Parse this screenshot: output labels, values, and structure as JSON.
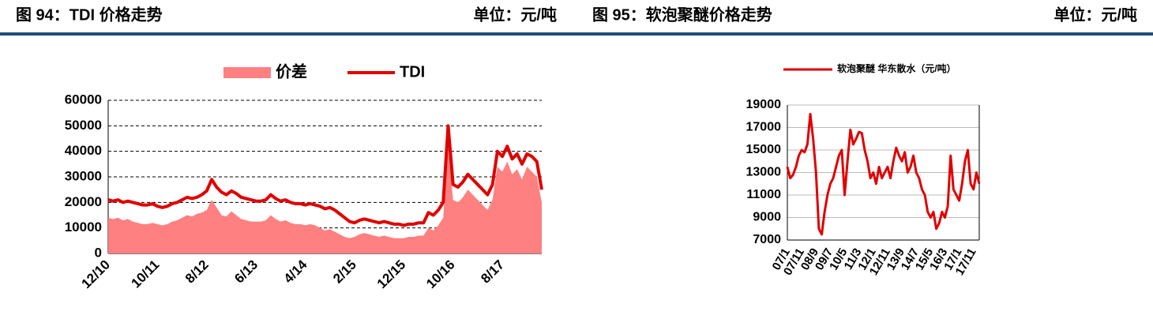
{
  "chart_data": [
    {
      "type": "line",
      "title": "图 94：TDI 价格走势",
      "unit": "单位：元/吨",
      "legend": "top",
      "categories": [
        "12/10",
        null,
        null,
        null,
        null,
        null,
        null,
        null,
        null,
        null,
        "10/11",
        null,
        null,
        null,
        null,
        null,
        null,
        null,
        null,
        null,
        "8/12",
        null,
        null,
        null,
        null,
        null,
        null,
        null,
        null,
        null,
        "6/13",
        null,
        null,
        null,
        null,
        null,
        null,
        null,
        null,
        null,
        "4/14",
        null,
        null,
        null,
        null,
        null,
        null,
        null,
        null,
        null,
        "2/15",
        null,
        null,
        null,
        null,
        null,
        null,
        null,
        null,
        null,
        "12/15",
        null,
        null,
        null,
        null,
        null,
        null,
        null,
        null,
        null,
        "10/16",
        null,
        null,
        null,
        null,
        null,
        null,
        null,
        null,
        null,
        "8/17",
        null,
        null,
        null,
        null,
        null,
        null,
        null,
        null
      ],
      "series": [
        {
          "name": "价差",
          "type": "area",
          "color": "#ff8080",
          "values": [
            14000,
            13500,
            14000,
            13000,
            13500,
            12500,
            12000,
            11500,
            11500,
            12000,
            11500,
            11000,
            11500,
            12500,
            13000,
            14000,
            15000,
            14500,
            15500,
            16000,
            17000,
            21000,
            18000,
            15000,
            14500,
            16500,
            15000,
            13500,
            13000,
            12500,
            12500,
            12500,
            13000,
            15000,
            13500,
            12500,
            13000,
            12000,
            11500,
            11500,
            11000,
            11500,
            11000,
            10000,
            9000,
            9500,
            8500,
            7500,
            6500,
            6000,
            6500,
            7500,
            8000,
            7500,
            7000,
            6500,
            7000,
            6500,
            6000,
            6000,
            6000,
            6500,
            6500,
            7000,
            7000,
            10000,
            9000,
            11000,
            14000,
            43000,
            21000,
            20000,
            22000,
            25000,
            23000,
            21000,
            19000,
            17000,
            21000,
            34000,
            32000,
            36000,
            31000,
            33000,
            29000,
            34000,
            32000,
            30000,
            20000
          ]
        },
        {
          "name": "TDI",
          "type": "line",
          "color": "#e00000",
          "values": [
            21000,
            20500,
            21000,
            20000,
            20500,
            20000,
            19500,
            19000,
            19000,
            19500,
            18500,
            18000,
            18500,
            19500,
            20000,
            21000,
            22000,
            21500,
            22000,
            23000,
            24500,
            29000,
            26000,
            24000,
            23000,
            24500,
            23500,
            22000,
            21500,
            21000,
            20500,
            20500,
            21000,
            23000,
            21500,
            20500,
            21000,
            20000,
            19500,
            19500,
            19000,
            19500,
            19000,
            18500,
            17500,
            18000,
            17000,
            15500,
            14000,
            12500,
            12000,
            13000,
            13500,
            13000,
            12500,
            12000,
            12500,
            12000,
            11500,
            11500,
            11000,
            11500,
            11500,
            12000,
            12000,
            16000,
            15000,
            17000,
            20000,
            50000,
            27000,
            26000,
            28000,
            31000,
            29000,
            27000,
            25000,
            23000,
            27000,
            40000,
            38000,
            42000,
            37000,
            39000,
            35000,
            39000,
            38000,
            36000,
            25000
          ]
        }
      ],
      "ylim": [
        0,
        60000
      ],
      "yticks": [
        0,
        10000,
        20000,
        30000,
        40000,
        50000,
        60000
      ],
      "grid": true
    },
    {
      "type": "line",
      "title": "图 95：软泡聚醚价格走势",
      "unit": "单位：元/吨",
      "legend": "top",
      "categories": [
        "07/1",
        null,
        null,
        null,
        null,
        "07/11",
        null,
        null,
        null,
        null,
        "08/9",
        null,
        null,
        null,
        null,
        "09/7",
        null,
        null,
        null,
        null,
        "10/5",
        null,
        null,
        null,
        null,
        "11/3",
        null,
        null,
        null,
        null,
        "12/1",
        null,
        null,
        null,
        null,
        "12/11",
        null,
        null,
        null,
        null,
        "13/9",
        null,
        null,
        null,
        null,
        "14/7",
        null,
        null,
        null,
        null,
        "15/5",
        null,
        null,
        null,
        null,
        "16/3",
        null,
        null,
        null,
        null,
        "17/1",
        null,
        null,
        null,
        null,
        "17/11",
        null,
        null
      ],
      "series": [
        {
          "name": "软泡聚醚 华东散水（元/吨）",
          "color": "#e00000",
          "values": [
            13500,
            12500,
            12800,
            13500,
            14500,
            15000,
            14800,
            15500,
            18200,
            16000,
            13000,
            8000,
            7500,
            9500,
            11000,
            12000,
            12500,
            13500,
            14500,
            15000,
            11000,
            14000,
            16800,
            15500,
            16000,
            16600,
            16500,
            15000,
            14000,
            12500,
            13000,
            12000,
            13500,
            12500,
            13000,
            13500,
            12500,
            14000,
            15200,
            14500,
            14000,
            14800,
            13000,
            13500,
            14500,
            13000,
            12500,
            11500,
            11000,
            9500,
            9000,
            9500,
            8000,
            8500,
            9500,
            9000,
            10000,
            14500,
            11500,
            11000,
            10500,
            12000,
            14000,
            15000,
            12000,
            11500,
            13000,
            12000
          ]
        }
      ],
      "ylim": [
        7000,
        19000
      ],
      "yticks": [
        7000,
        9000,
        11000,
        13000,
        15000,
        17000,
        19000
      ],
      "grid": true
    }
  ]
}
